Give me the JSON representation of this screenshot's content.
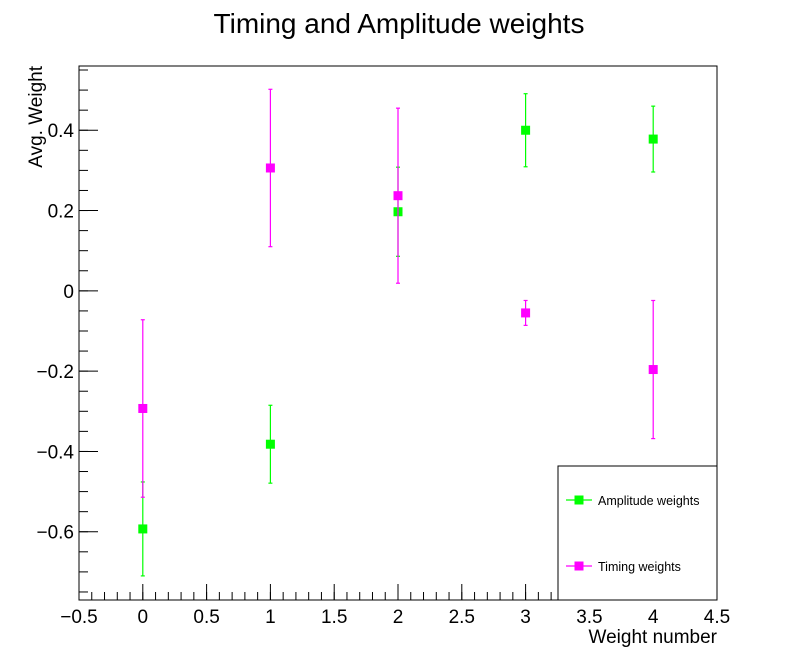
{
  "chart_data": {
    "type": "scatter",
    "title": "Timing and Amplitude weights",
    "xlabel": "Weight number",
    "ylabel": "Avg. Weight",
    "xlim": [
      -0.5,
      4.5
    ],
    "ylim": [
      -0.77,
      0.56
    ],
    "x_ticks": [
      -0.5,
      0,
      0.5,
      1,
      1.5,
      2,
      2.5,
      3,
      3.5,
      4,
      4.5
    ],
    "x_tick_labels": [
      "−0.5",
      "0",
      "0.5",
      "1",
      "1.5",
      "2",
      "2.5",
      "3",
      "3.5",
      "4",
      "4.5"
    ],
    "y_ticks": [
      -0.6,
      -0.4,
      -0.2,
      0,
      0.2,
      0.4
    ],
    "y_tick_labels": [
      "−0.6",
      "−0.4",
      "−0.2",
      "0",
      "0.2",
      "0.4"
    ],
    "grid": false,
    "legend_position": "bottom-right",
    "series": [
      {
        "name": "Amplitude weights",
        "color": "#00ff00",
        "marker": "square",
        "points": [
          {
            "x": 0,
            "y": -0.593,
            "err": 0.117
          },
          {
            "x": 1,
            "y": -0.382,
            "err": 0.097
          },
          {
            "x": 2,
            "y": 0.197,
            "err": 0.111
          },
          {
            "x": 3,
            "y": 0.4,
            "err": 0.091
          },
          {
            "x": 4,
            "y": 0.378,
            "err": 0.082
          }
        ]
      },
      {
        "name": "Timing weights",
        "color": "#ff00ff",
        "marker": "square",
        "points": [
          {
            "x": 0,
            "y": -0.293,
            "err": 0.221
          },
          {
            "x": 1,
            "y": 0.306,
            "err": 0.196
          },
          {
            "x": 2,
            "y": 0.237,
            "err": 0.218
          },
          {
            "x": 3,
            "y": -0.055,
            "err": 0.031
          },
          {
            "x": 4,
            "y": -0.196,
            "err": 0.172
          }
        ]
      }
    ]
  }
}
